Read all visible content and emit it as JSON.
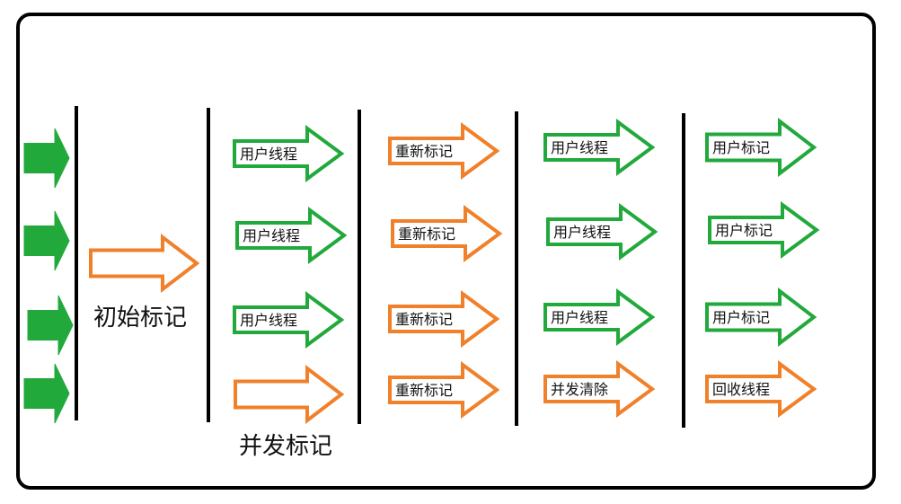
{
  "phases": [
    {
      "name": "初始标记"
    },
    {
      "name": "并发标记"
    }
  ],
  "arrow_labels": {
    "user_thread": "用户线程",
    "remark": "重新标记",
    "concurrent_sweep": "并发清除",
    "user_mark": "用户标记",
    "reclaim_thread": "回收线程"
  },
  "colors": {
    "green": "#22A93B",
    "orange": "#F0802A",
    "divider": "#000000"
  }
}
